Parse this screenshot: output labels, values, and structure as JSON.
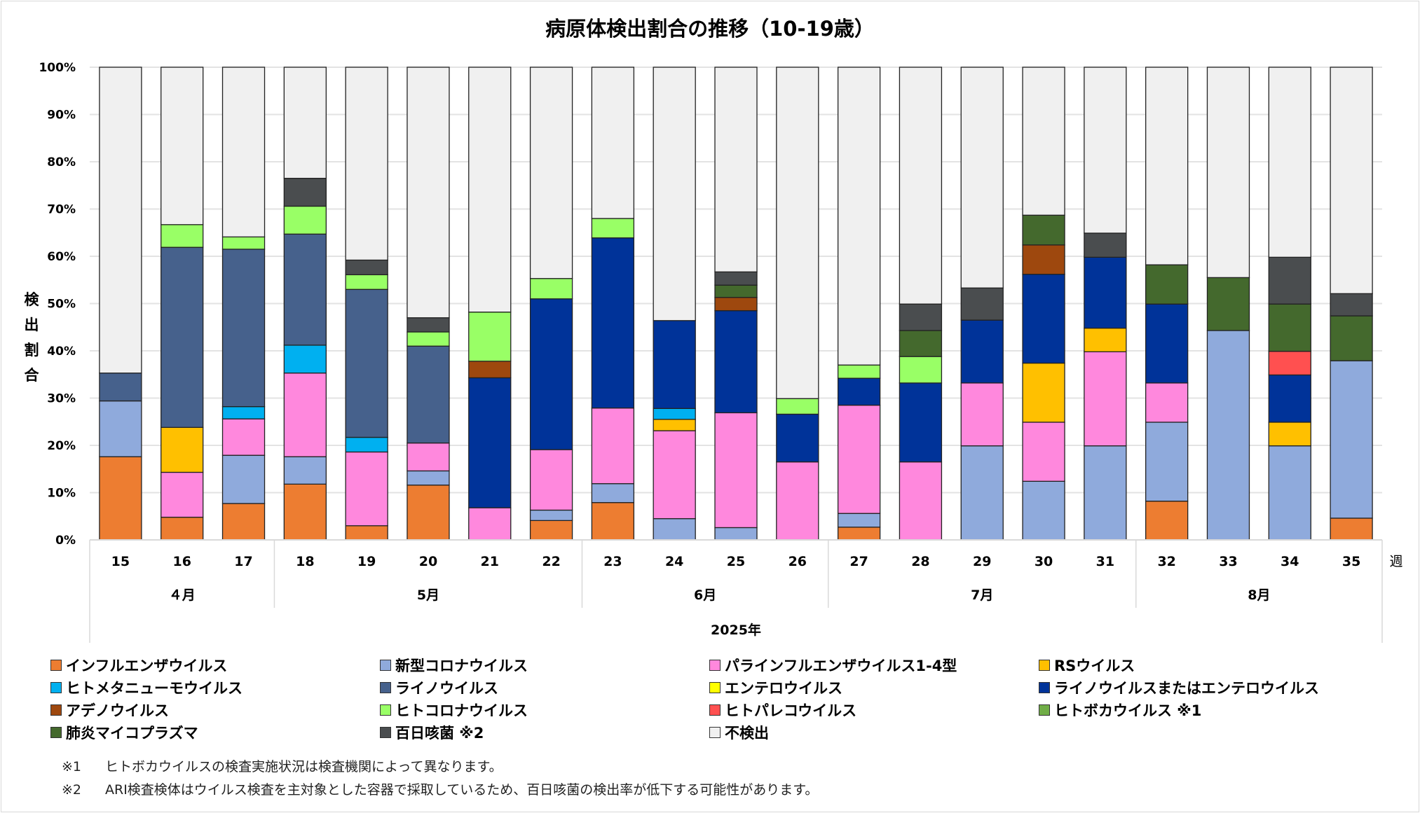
{
  "chart_data": {
    "type": "bar",
    "stacked": true,
    "title": "病原体検出割合の推移（10-19歳）",
    "ylabel": "検出割合",
    "xlabel": "2025年",
    "x_unit_label": "週",
    "ylim": [
      0,
      100
    ],
    "yticks": [
      "0%",
      "10%",
      "20%",
      "30%",
      "40%",
      "50%",
      "60%",
      "70%",
      "80%",
      "90%",
      "100%"
    ],
    "grid": true,
    "legend_position": "bottom",
    "categories": [
      "15",
      "16",
      "17",
      "18",
      "19",
      "20",
      "21",
      "22",
      "23",
      "24",
      "25",
      "26",
      "27",
      "28",
      "29",
      "30",
      "31",
      "32",
      "33",
      "34",
      "35"
    ],
    "months": [
      {
        "label": "４月",
        "weeks": [
          "15",
          "16",
          "17"
        ]
      },
      {
        "label": "5月",
        "weeks": [
          "18",
          "19",
          "20",
          "21",
          "22"
        ]
      },
      {
        "label": "6月",
        "weeks": [
          "23",
          "24",
          "25",
          "26"
        ]
      },
      {
        "label": "7月",
        "weeks": [
          "27",
          "28",
          "29",
          "30",
          "31"
        ]
      },
      {
        "label": "8月",
        "weeks": [
          "32",
          "33",
          "34",
          "35"
        ]
      }
    ],
    "series": [
      {
        "name": "インフルエンザウイルス",
        "color": "#ED7D31",
        "values": [
          17.6,
          4.8,
          7.7,
          11.8,
          3.0,
          11.6,
          0,
          4.1,
          7.9,
          0,
          0,
          0,
          2.7,
          0,
          0,
          0,
          0,
          8.2,
          0,
          0,
          4.6
        ]
      },
      {
        "name": "新型コロナウイルス",
        "color": "#8FAADC",
        "values": [
          11.8,
          0,
          10.2,
          5.8,
          0,
          3.0,
          0,
          2.2,
          4.0,
          4.5,
          2.6,
          0,
          2.9,
          0,
          19.9,
          12.4,
          19.9,
          16.7,
          44.3,
          19.9,
          33.3
        ]
      },
      {
        "name": "パラインフルエンザウイルス1-4型",
        "color": "#FF88DD",
        "values": [
          0,
          9.5,
          7.7,
          17.7,
          15.6,
          5.9,
          6.8,
          12.8,
          16.0,
          18.6,
          24.3,
          16.5,
          22.9,
          16.5,
          13.3,
          12.5,
          19.9,
          8.3,
          0,
          0,
          0
        ]
      },
      {
        "name": "RSウイルス",
        "color": "#FFC000",
        "values": [
          0,
          9.5,
          0,
          0,
          0,
          0,
          0,
          0,
          0,
          2.4,
          0,
          0,
          0,
          0,
          0,
          12.5,
          5.0,
          0,
          0,
          5.0,
          0
        ]
      },
      {
        "name": "ヒトメタニューモウイルス",
        "color": "#00B0F0",
        "values": [
          0,
          0,
          2.6,
          5.9,
          3.1,
          0,
          0,
          0,
          0,
          2.3,
          0,
          0,
          0,
          0,
          0,
          0,
          0,
          0,
          0,
          0,
          0
        ]
      },
      {
        "name": "ライノウイルス",
        "color": "#46618C",
        "values": [
          5.9,
          38.1,
          33.3,
          23.5,
          31.3,
          20.5,
          0,
          0,
          0,
          0,
          0,
          0,
          0,
          0,
          0,
          0,
          0,
          0,
          0,
          0,
          0
        ]
      },
      {
        "name": "エンテロウイルス",
        "color": "#FFFF00",
        "values": [
          0,
          0,
          0,
          0,
          0,
          0,
          0,
          0,
          0,
          0,
          0,
          0,
          0,
          0,
          0,
          0,
          0,
          0,
          0,
          0,
          0
        ]
      },
      {
        "name": "ライノウイルスまたはエンテロウイルス",
        "color": "#003399",
        "values": [
          0,
          0,
          0,
          0,
          0,
          0,
          27.5,
          31.9,
          36.0,
          18.6,
          21.6,
          10.1,
          5.7,
          16.7,
          13.3,
          18.8,
          15.0,
          16.7,
          0,
          10.0,
          0
        ]
      },
      {
        "name": "アデノウイルス",
        "color": "#9E480E",
        "values": [
          0,
          0,
          0,
          0,
          0,
          0,
          3.5,
          0,
          0,
          0,
          2.8,
          0,
          0,
          0,
          0,
          6.2,
          0,
          0,
          0,
          0,
          0
        ]
      },
      {
        "name": "ヒトコロナウイルス",
        "color": "#99FF66",
        "values": [
          0,
          4.8,
          2.6,
          5.9,
          3.1,
          3.0,
          10.4,
          4.3,
          4.1,
          0,
          0,
          3.3,
          2.8,
          5.6,
          0,
          0,
          0,
          0,
          0,
          0,
          0
        ]
      },
      {
        "name": "ヒトパレコウイルス",
        "color": "#FF5050",
        "values": [
          0,
          0,
          0,
          0,
          0,
          0,
          0,
          0,
          0,
          0,
          0,
          0,
          0,
          0,
          0,
          0,
          0,
          0,
          0,
          5.0,
          0
        ]
      },
      {
        "name": "ヒトボカウイルス ※1",
        "color": "#70AD47",
        "values": [
          0,
          0,
          0,
          0,
          0,
          0,
          0,
          0,
          0,
          0,
          0,
          0,
          0,
          0,
          0,
          0,
          0,
          0,
          0,
          0,
          0
        ]
      },
      {
        "name": "肺炎マイコプラズマ",
        "color": "#44692D",
        "values": [
          0,
          0,
          0,
          0,
          0,
          0,
          0,
          0,
          0,
          0,
          2.6,
          0,
          0,
          5.5,
          0,
          6.3,
          0,
          8.3,
          11.2,
          10.0,
          9.5
        ]
      },
      {
        "name": "百日咳菌 ※2",
        "color": "#4A4D4F",
        "values": [
          0,
          0,
          0,
          5.9,
          3.1,
          3.0,
          0,
          0,
          0,
          0,
          2.8,
          0,
          0,
          5.6,
          6.8,
          0,
          5.1,
          0,
          0,
          9.9,
          4.7
        ]
      },
      {
        "name": "不検出",
        "color": "#F0F0F0",
        "values": [
          64.7,
          33.3,
          35.9,
          23.5,
          40.8,
          53.0,
          51.8,
          44.7,
          32.0,
          53.6,
          43.3,
          70.1,
          63.0,
          50.1,
          46.7,
          31.3,
          35.1,
          41.8,
          44.5,
          40.2,
          47.9
        ]
      }
    ],
    "notes": [
      {
        "mark": "※1",
        "text": "ヒトボカウイルスの検査実施状況は検査機関によって異なります。"
      },
      {
        "mark": "※2",
        "text": "ARI検査検体はウイルス検査を主対象とした容器で採取しているため、百日咳菌の検出率が低下する可能性があります。"
      }
    ]
  }
}
